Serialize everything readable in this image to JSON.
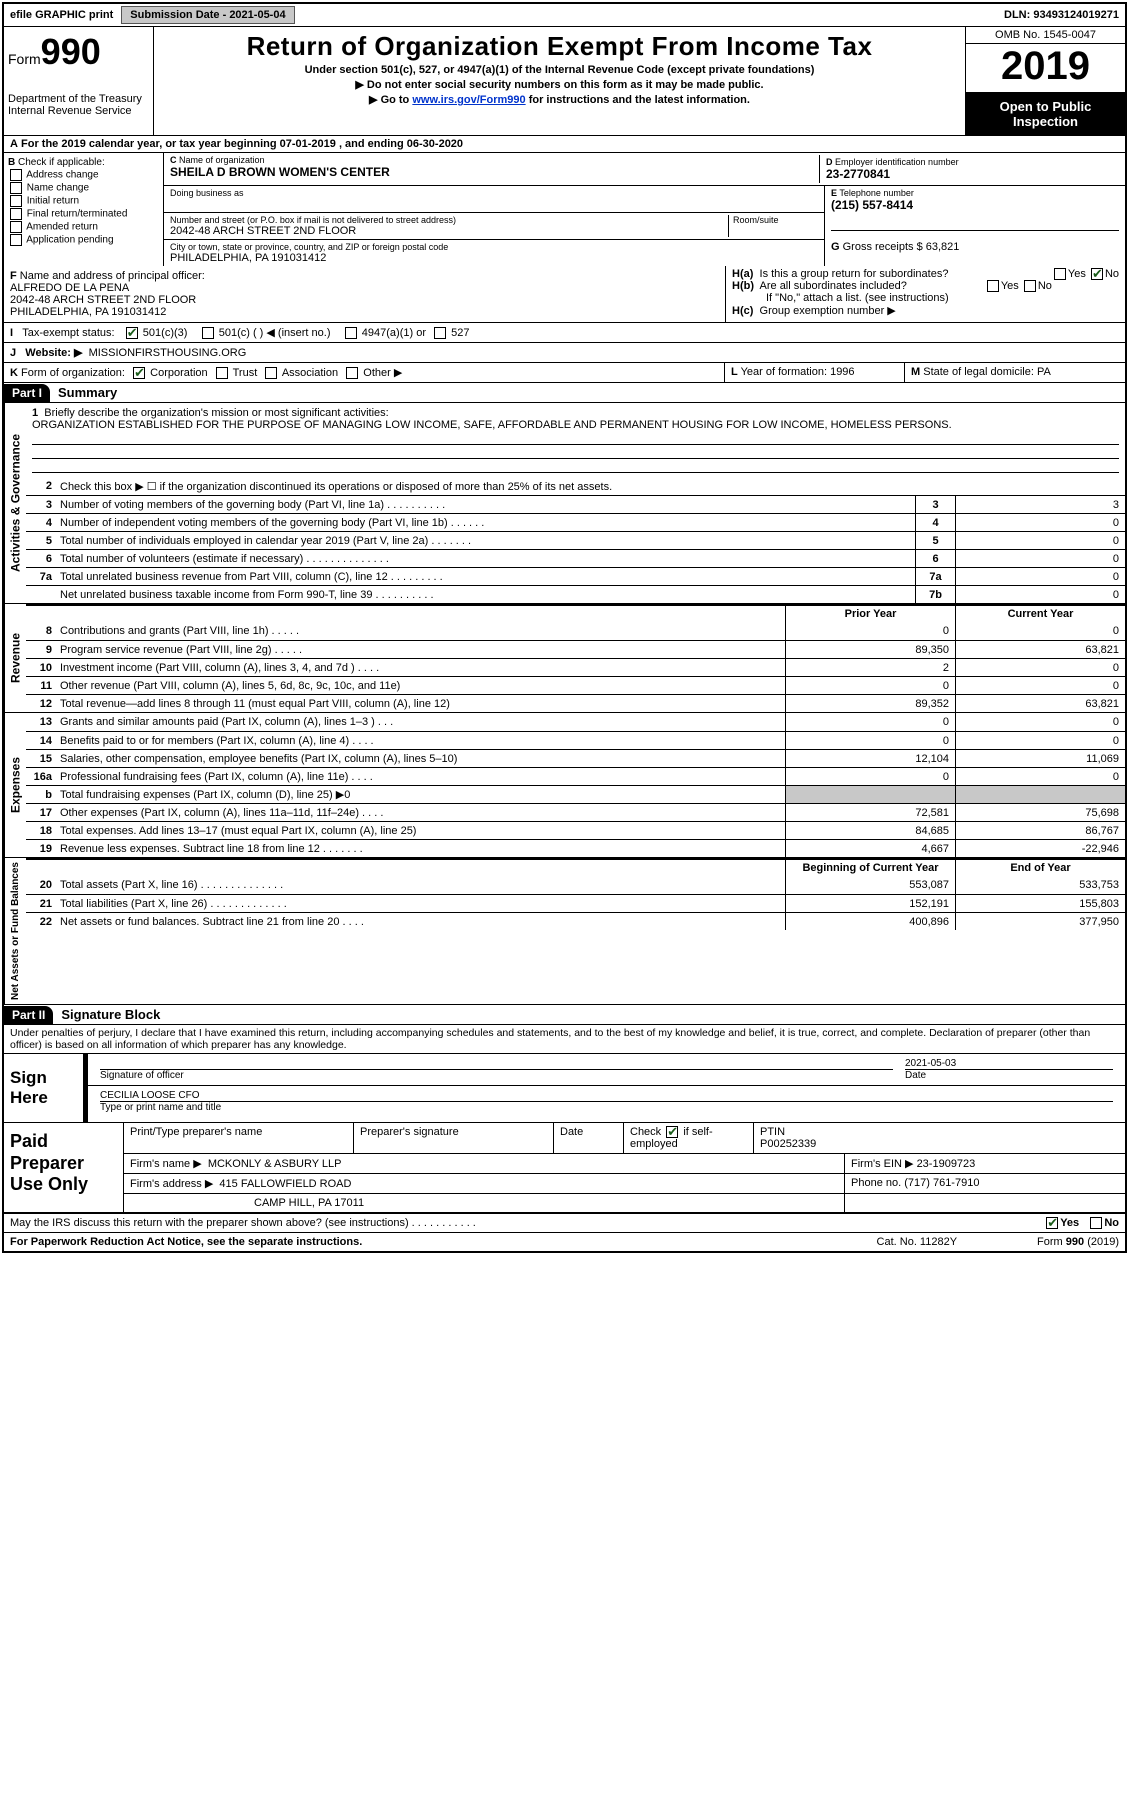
{
  "topbar": {
    "efile": "efile GRAPHIC print",
    "sub_label": "Submission Date - 2021-05-04",
    "dln": "DLN: 93493124019271"
  },
  "header": {
    "form_word": "Form",
    "form_num": "990",
    "dept": "Department of the Treasury",
    "irs": "Internal Revenue Service",
    "title": "Return of Organization Exempt From Income Tax",
    "sub1": "Under section 501(c), 527, or 4947(a)(1) of the Internal Revenue Code (except private foundations)",
    "sub2": "▶ Do not enter social security numbers on this form as it may be made public.",
    "sub3_pre": "▶ Go to ",
    "sub3_link": "www.irs.gov/Form990",
    "sub3_post": " for instructions and the latest information.",
    "omb": "OMB No. 1545-0047",
    "year": "2019",
    "opi1": "Open to Public",
    "opi2": "Inspection"
  },
  "A": {
    "text": "For the 2019 calendar year, or tax year beginning 07-01-2019    , and ending 06-30-2020"
  },
  "B": {
    "label": "Check if applicable:",
    "opts": [
      "Address change",
      "Name change",
      "Initial return",
      "Final return/terminated",
      "Amended return",
      "Application pending"
    ]
  },
  "C": {
    "name_label": "Name of organization",
    "name": "SHEILA D BROWN WOMEN'S CENTER",
    "dba_label": "Doing business as",
    "addr_label": "Number and street (or P.O. box if mail is not delivered to street address)",
    "room_label": "Room/suite",
    "addr": "2042-48 ARCH STREET 2ND FLOOR",
    "city_label": "City or town, state or province, country, and ZIP or foreign postal code",
    "city": "PHILADELPHIA, PA  191031412"
  },
  "D": {
    "label": "Employer identification number",
    "val": "23-2770841"
  },
  "E": {
    "label": "Telephone number",
    "val": "(215) 557-8414"
  },
  "G": {
    "label": "Gross receipts $ 63,821"
  },
  "F": {
    "label": "Name and address of principal officer:",
    "name": "ALFREDO DE LA PENA",
    "addr1": "2042-48 ARCH STREET 2ND FLOOR",
    "addr2": "PHILADELPHIA, PA  191031412"
  },
  "H": {
    "a": "Is this a group return for subordinates?",
    "b": "Are all subordinates included?",
    "note": "If \"No,\" attach a list. (see instructions)",
    "c": "Group exemption number ▶",
    "yes": "Yes",
    "no": "No"
  },
  "I": {
    "label": "Tax-exempt status:",
    "o1": "501(c)(3)",
    "o2": "501(c) (   ) ◀ (insert no.)",
    "o3": "4947(a)(1) or",
    "o4": "527"
  },
  "J": {
    "label": "Website: ▶",
    "val": "MISSIONFIRSTHOUSING.ORG"
  },
  "K": {
    "label": "Form of organization:",
    "o1": "Corporation",
    "o2": "Trust",
    "o3": "Association",
    "o4": "Other ▶"
  },
  "L": {
    "label": "Year of formation: 1996"
  },
  "M": {
    "label": "State of legal domicile: PA"
  },
  "part1": {
    "num": "Part I",
    "title": "Summary"
  },
  "mission": {
    "q": "Briefly describe the organization's mission or most significant activities:",
    "text": "ORGANIZATION ESTABLISHED FOR THE PURPOSE OF MANAGING LOW INCOME, SAFE, AFFORDABLE AND PERMANENT HOUSING FOR LOW INCOME, HOMELESS PERSONS."
  },
  "lines_gov": [
    {
      "n": "2",
      "t": "Check this box ▶ ☐  if the organization discontinued its operations or disposed of more than 25% of its net assets.",
      "box": "",
      "v": ""
    },
    {
      "n": "3",
      "t": "Number of voting members of the governing body (Part VI, line 1a)   .    .    .    .    .    .    .    .    .    .",
      "box": "3",
      "v": "3"
    },
    {
      "n": "4",
      "t": "Number of independent voting members of the governing body (Part VI, line 1b)   .    .    .    .    .    .",
      "box": "4",
      "v": "0"
    },
    {
      "n": "5",
      "t": "Total number of individuals employed in calendar year 2019 (Part V, line 2a)   .    .    .    .    .    .    .",
      "box": "5",
      "v": "0"
    },
    {
      "n": "6",
      "t": "Total number of volunteers (estimate if necessary)    .    .    .    .    .    .    .    .    .    .    .    .    .    .",
      "box": "6",
      "v": "0"
    },
    {
      "n": "7a",
      "t": "Total unrelated business revenue from Part VIII, column (C), line 12   .    .    .    .    .    .    .    .    .",
      "box": "7a",
      "v": "0"
    },
    {
      "n": "",
      "t": "Net unrelated business taxable income from Form 990-T, line 39    .    .    .    .    .    .    .    .    .    .",
      "box": "7b",
      "v": "0"
    }
  ],
  "col_headers": {
    "prior": "Prior Year",
    "current": "Current Year"
  },
  "revenue": [
    {
      "n": "8",
      "t": "Contributions and grants (Part VIII, line 1h)    .    .    .    .    .",
      "p": "0",
      "c": "0"
    },
    {
      "n": "9",
      "t": "Program service revenue (Part VIII, line 2g)    .    .    .    .    .",
      "p": "89,350",
      "c": "63,821"
    },
    {
      "n": "10",
      "t": "Investment income (Part VIII, column (A), lines 3, 4, and 7d )    .    .    .    .",
      "p": "2",
      "c": "0"
    },
    {
      "n": "11",
      "t": "Other revenue (Part VIII, column (A), lines 5, 6d, 8c, 9c, 10c, and 11e)",
      "p": "0",
      "c": "0"
    },
    {
      "n": "12",
      "t": "Total revenue—add lines 8 through 11 (must equal Part VIII, column (A), line 12)",
      "p": "89,352",
      "c": "63,821"
    }
  ],
  "expenses": [
    {
      "n": "13",
      "t": "Grants and similar amounts paid (Part IX, column (A), lines 1–3 )   .    .    .",
      "p": "0",
      "c": "0"
    },
    {
      "n": "14",
      "t": "Benefits paid to or for members (Part IX, column (A), line 4)   .    .    .    .",
      "p": "0",
      "c": "0"
    },
    {
      "n": "15",
      "t": "Salaries, other compensation, employee benefits (Part IX, column (A), lines 5–10)",
      "p": "12,104",
      "c": "11,069"
    },
    {
      "n": "16a",
      "t": "Professional fundraising fees (Part IX, column (A), line 11e)   .    .    .    .",
      "p": "0",
      "c": "0"
    },
    {
      "n": "b",
      "t": "Total fundraising expenses (Part IX, column (D), line 25) ▶0",
      "p": "",
      "c": "",
      "shade": true
    },
    {
      "n": "17",
      "t": "Other expenses (Part IX, column (A), lines 11a–11d, 11f–24e)   .    .    .    .",
      "p": "72,581",
      "c": "75,698"
    },
    {
      "n": "18",
      "t": "Total expenses. Add lines 13–17 (must equal Part IX, column (A), line 25)",
      "p": "84,685",
      "c": "86,767"
    },
    {
      "n": "19",
      "t": "Revenue less expenses. Subtract line 18 from line 12   .    .    .    .    .    .    .",
      "p": "4,667",
      "c": "-22,946"
    }
  ],
  "net_headers": {
    "begin": "Beginning of Current Year",
    "end": "End of Year"
  },
  "net": [
    {
      "n": "20",
      "t": "Total assets (Part X, line 16)   .    .    .    .    .    .    .    .    .    .    .    .    .    .",
      "p": "553,087",
      "c": "533,753"
    },
    {
      "n": "21",
      "t": "Total liabilities (Part X, line 26)   .    .    .    .    .    .    .    .    .    .    .    .    .",
      "p": "152,191",
      "c": "155,803"
    },
    {
      "n": "22",
      "t": "Net assets or fund balances. Subtract line 21 from line 20   .    .    .    .",
      "p": "400,896",
      "c": "377,950"
    }
  ],
  "part2": {
    "num": "Part II",
    "title": "Signature Block"
  },
  "penalties": "Under penalties of perjury, I declare that I have examined this return, including accompanying schedules and statements, and to the best of my knowledge and belief, it is true, correct, and complete. Declaration of preparer (other than officer) is based on all information of which preparer has any knowledge.",
  "sign": {
    "left": "Sign Here",
    "sig_label": "Signature of officer",
    "date_label": "Date",
    "date": "2021-05-03",
    "name": "CECILIA LOOSE  CFO",
    "name_label": "Type or print name and title"
  },
  "paid": {
    "left": "Paid Preparer Use Only",
    "h1": "Print/Type preparer's name",
    "h2": "Preparer's signature",
    "h3": "Date",
    "h4a": "Check",
    "h4b": "if self-employed",
    "h5": "PTIN",
    "ptin": "P00252339",
    "firm_label": "Firm's name    ▶",
    "firm": "MCKONLY & ASBURY LLP",
    "ein_label": "Firm's EIN ▶",
    "ein": "23-1909723",
    "addr_label": "Firm's address ▶",
    "addr1": "415 FALLOWFIELD ROAD",
    "addr2": "CAMP HILL, PA  17011",
    "phone_label": "Phone no.",
    "phone": "(717) 761-7910"
  },
  "may": {
    "q": "May the IRS discuss this return with the preparer shown above? (see instructions)   .    .    .    .    .    .    .    .    .    .    .",
    "yes": "Yes",
    "no": "No"
  },
  "footer": {
    "left": "For Paperwork Reduction Act Notice, see the separate instructions.",
    "mid": "Cat. No. 11282Y",
    "right": "Form 990 (2019)"
  },
  "side": {
    "gov": "Activities & Governance",
    "rev": "Revenue",
    "exp": "Expenses",
    "net": "Net Assets or Fund Balances"
  }
}
